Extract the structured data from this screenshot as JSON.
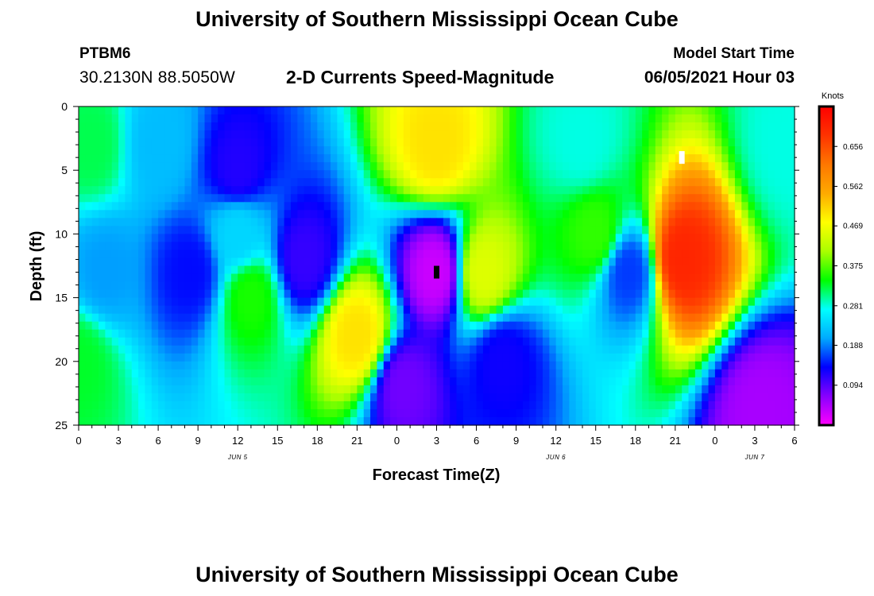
{
  "header": {
    "title": "University of Southern Mississippi Ocean Cube",
    "station_id": "PTBM6",
    "station_coords": "30.2130N  88.5050W",
    "chart_title": "2-D Currents Speed-Magnitude",
    "model_label": "Model Start Time",
    "model_time": "06/05/2021 Hour 03"
  },
  "footer": {
    "title": "University of Southern Mississippi Ocean Cube"
  },
  "chart_data": {
    "type": "heatmap",
    "title": "2-D Currents Speed-Magnitude",
    "xlabel": "Forecast Time(Z)",
    "ylabel": "Depth (ft)",
    "xlim": [
      0,
      54
    ],
    "ylim": [
      0,
      25
    ],
    "y_inverted": true,
    "x_tick_values": [
      0,
      3,
      6,
      9,
      12,
      15,
      18,
      21,
      24,
      27,
      30,
      33,
      36,
      39,
      42,
      45,
      48,
      51,
      54
    ],
    "x_tick_labels": [
      "0",
      "3",
      "6",
      "9",
      "12",
      "15",
      "18",
      "21",
      "0",
      "3",
      "6",
      "9",
      "12",
      "15",
      "18",
      "21",
      "0",
      "3",
      "6"
    ],
    "y_ticks": [
      0,
      5,
      10,
      15,
      20,
      25
    ],
    "date_labels": [
      {
        "label": "JUN 5",
        "hour": 12
      },
      {
        "label": "JUN 6",
        "hour": 36
      },
      {
        "label": "JUN 7",
        "hour": 51
      }
    ],
    "colorbar": {
      "unit": "Knots",
      "min": 0.0,
      "max": 0.75,
      "ticks": [
        "0.094",
        "0.188",
        "0.281",
        "0.375",
        "0.469",
        "0.562",
        "0.656"
      ],
      "colors": [
        "#ff00ff",
        "#8800ff",
        "#0000ff",
        "#00aaff",
        "#00ffff",
        "#00ff00",
        "#aaff00",
        "#ffff00",
        "#ffaa00",
        "#ff7700",
        "#ff3300",
        "#ff0000"
      ]
    },
    "markers": [
      {
        "kind": "min",
        "hour": 27,
        "depth": 13,
        "color": "#000000"
      },
      {
        "kind": "max",
        "hour": 45.5,
        "depth": 4,
        "color": "#ffffff"
      }
    ],
    "features": [
      {
        "hour": 0,
        "depth": 20,
        "speed": 0.33
      },
      {
        "hour": 1,
        "depth": 3,
        "speed": 0.32
      },
      {
        "hour": 6,
        "depth": 3,
        "speed": 0.22
      },
      {
        "hour": 8.5,
        "depth": 13,
        "speed": 0.14
      },
      {
        "hour": 12,
        "depth": 5,
        "speed": 0.12
      },
      {
        "hour": 12,
        "depth": 10,
        "speed": 0.24
      },
      {
        "hour": 13,
        "depth": 15,
        "speed": 0.35
      },
      {
        "hour": 2,
        "depth": 13,
        "speed": 0.2
      },
      {
        "hour": 17,
        "depth": 12,
        "speed": 0.11
      },
      {
        "hour": 21,
        "depth": 18,
        "speed": 0.5
      },
      {
        "hour": 27,
        "depth": 3,
        "speed": 0.5
      },
      {
        "hour": 27,
        "depth": 13,
        "speed": 0.03
      },
      {
        "hour": 24.5,
        "depth": 22,
        "speed": 0.08
      },
      {
        "hour": 32,
        "depth": 20,
        "speed": 0.13
      },
      {
        "hour": 30.5,
        "depth": 13,
        "speed": 0.45
      },
      {
        "hour": 38,
        "depth": 3,
        "speed": 0.28
      },
      {
        "hour": 39,
        "depth": 10,
        "speed": 0.36
      },
      {
        "hour": 41.5,
        "depth": 13,
        "speed": 0.16
      },
      {
        "hour": 45.5,
        "depth": 12,
        "speed": 0.7
      },
      {
        "hour": 51.5,
        "depth": 24,
        "speed": 0.05
      },
      {
        "hour": 53.5,
        "depth": 3,
        "speed": 0.28
      }
    ]
  }
}
